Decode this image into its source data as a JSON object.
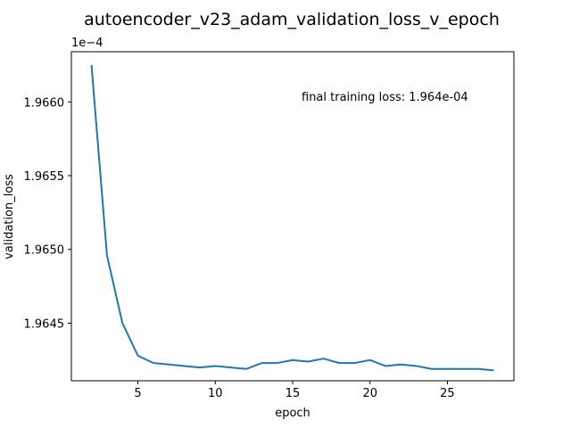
{
  "chart_data": {
    "type": "line",
    "title": "autoencoder_v23_adam_validation_loss_v_epoch",
    "xlabel": "epoch",
    "ylabel": "validation_loss",
    "y_multiplier": "1e−4",
    "annotation": "final training loss: 1.964e-04",
    "xlim": [
      0.7,
      29.3
    ],
    "ylim": [
      1.96411,
      1.96634
    ],
    "x_ticks": [
      5,
      10,
      15,
      20,
      25
    ],
    "x_tick_labels": [
      "5",
      "10",
      "15",
      "20",
      "25"
    ],
    "y_ticks": [
      1.9645,
      1.965,
      1.9655,
      1.966
    ],
    "y_tick_labels": [
      "1.9645",
      "1.9650",
      "1.9655",
      "1.9660"
    ],
    "grid": false,
    "series": [
      {
        "color": "#1f77b4",
        "x": [
          2,
          3,
          4,
          5,
          6,
          7,
          8,
          9,
          10,
          11,
          12,
          13,
          14,
          15,
          16,
          17,
          18,
          19,
          20,
          21,
          22,
          23,
          24,
          25,
          26,
          27,
          28
        ],
        "y": [
          1.96625,
          1.96496,
          1.9645,
          1.96428,
          1.96423,
          1.96422,
          1.96421,
          1.9642,
          1.96421,
          1.9642,
          1.96419,
          1.96423,
          1.96423,
          1.96425,
          1.96424,
          1.96426,
          1.96423,
          1.96423,
          1.96425,
          1.96421,
          1.96422,
          1.96421,
          1.96419,
          1.96419,
          1.96419,
          1.96419,
          1.96418
        ]
      }
    ]
  }
}
